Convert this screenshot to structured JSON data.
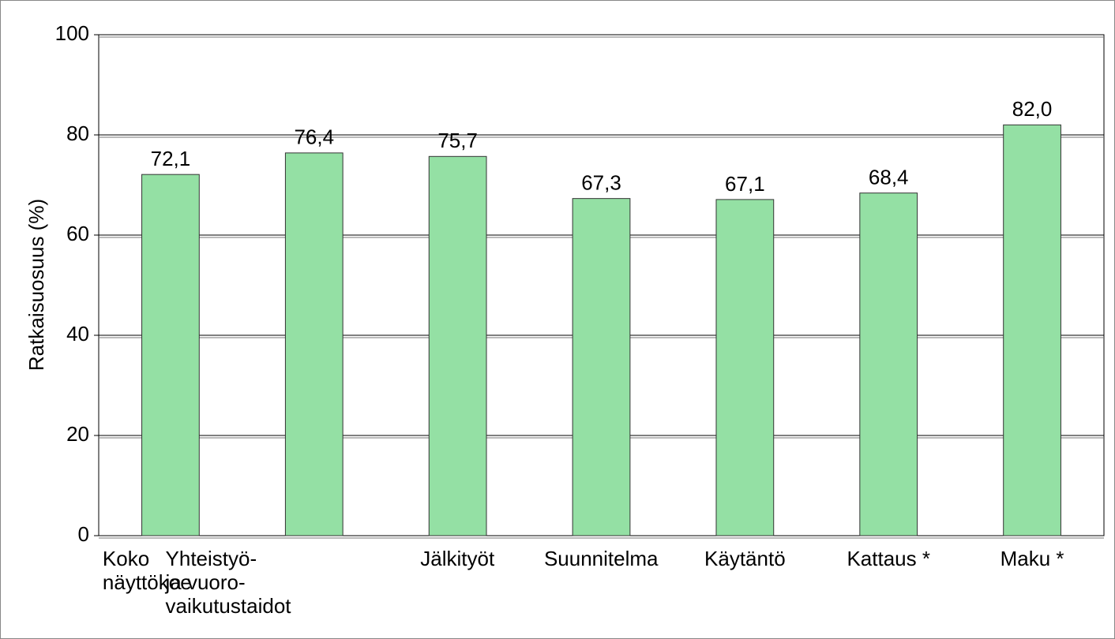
{
  "chart_data": {
    "type": "bar",
    "y_label": "Ratkaisuosuus (%)",
    "categories": [
      "Koko\nnäyttökoe",
      "Yhteistyö-\nja vuoro-\nvaikutustaidot",
      "Jälkityöt",
      "Suunnitelma",
      "Käytäntö",
      "Kattaus *",
      "Maku *"
    ],
    "values": [
      72.1,
      76.4,
      75.7,
      67.3,
      67.1,
      68.4,
      82.0
    ],
    "value_labels": [
      "72,1",
      "76,4",
      "75,7",
      "67,3",
      "67,1",
      "68,4",
      "82,0"
    ],
    "color": "#94e0a4",
    "ylim": [
      0,
      100
    ],
    "yticks": [
      0,
      20,
      40,
      60,
      80,
      100
    ],
    "grid": true
  }
}
